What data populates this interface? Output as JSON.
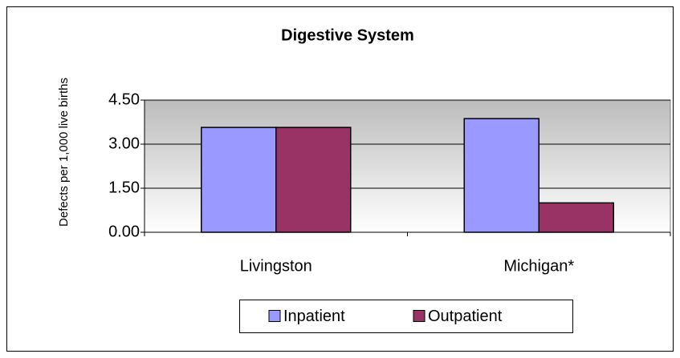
{
  "chart_data": {
    "type": "bar",
    "title": "Digestive System",
    "y_label": "Defects per 1,000 live births",
    "categories": [
      "Livingston",
      "Michigan*"
    ],
    "series": [
      {
        "name": "Inpatient",
        "color": "#9999ff",
        "values": [
          3.57,
          3.87
        ]
      },
      {
        "name": "Outpatient",
        "color": "#993366",
        "values": [
          3.57,
          1.0
        ]
      }
    ],
    "ylim": [
      0,
      4.5
    ],
    "yticks": [
      {
        "value": 0,
        "label": "0.00"
      },
      {
        "value": 1.5,
        "label": "1.50"
      },
      {
        "value": 3,
        "label": "3.00"
      },
      {
        "value": 4.5,
        "label": "4.50"
      }
    ],
    "grid": true,
    "legend": "bottom"
  }
}
